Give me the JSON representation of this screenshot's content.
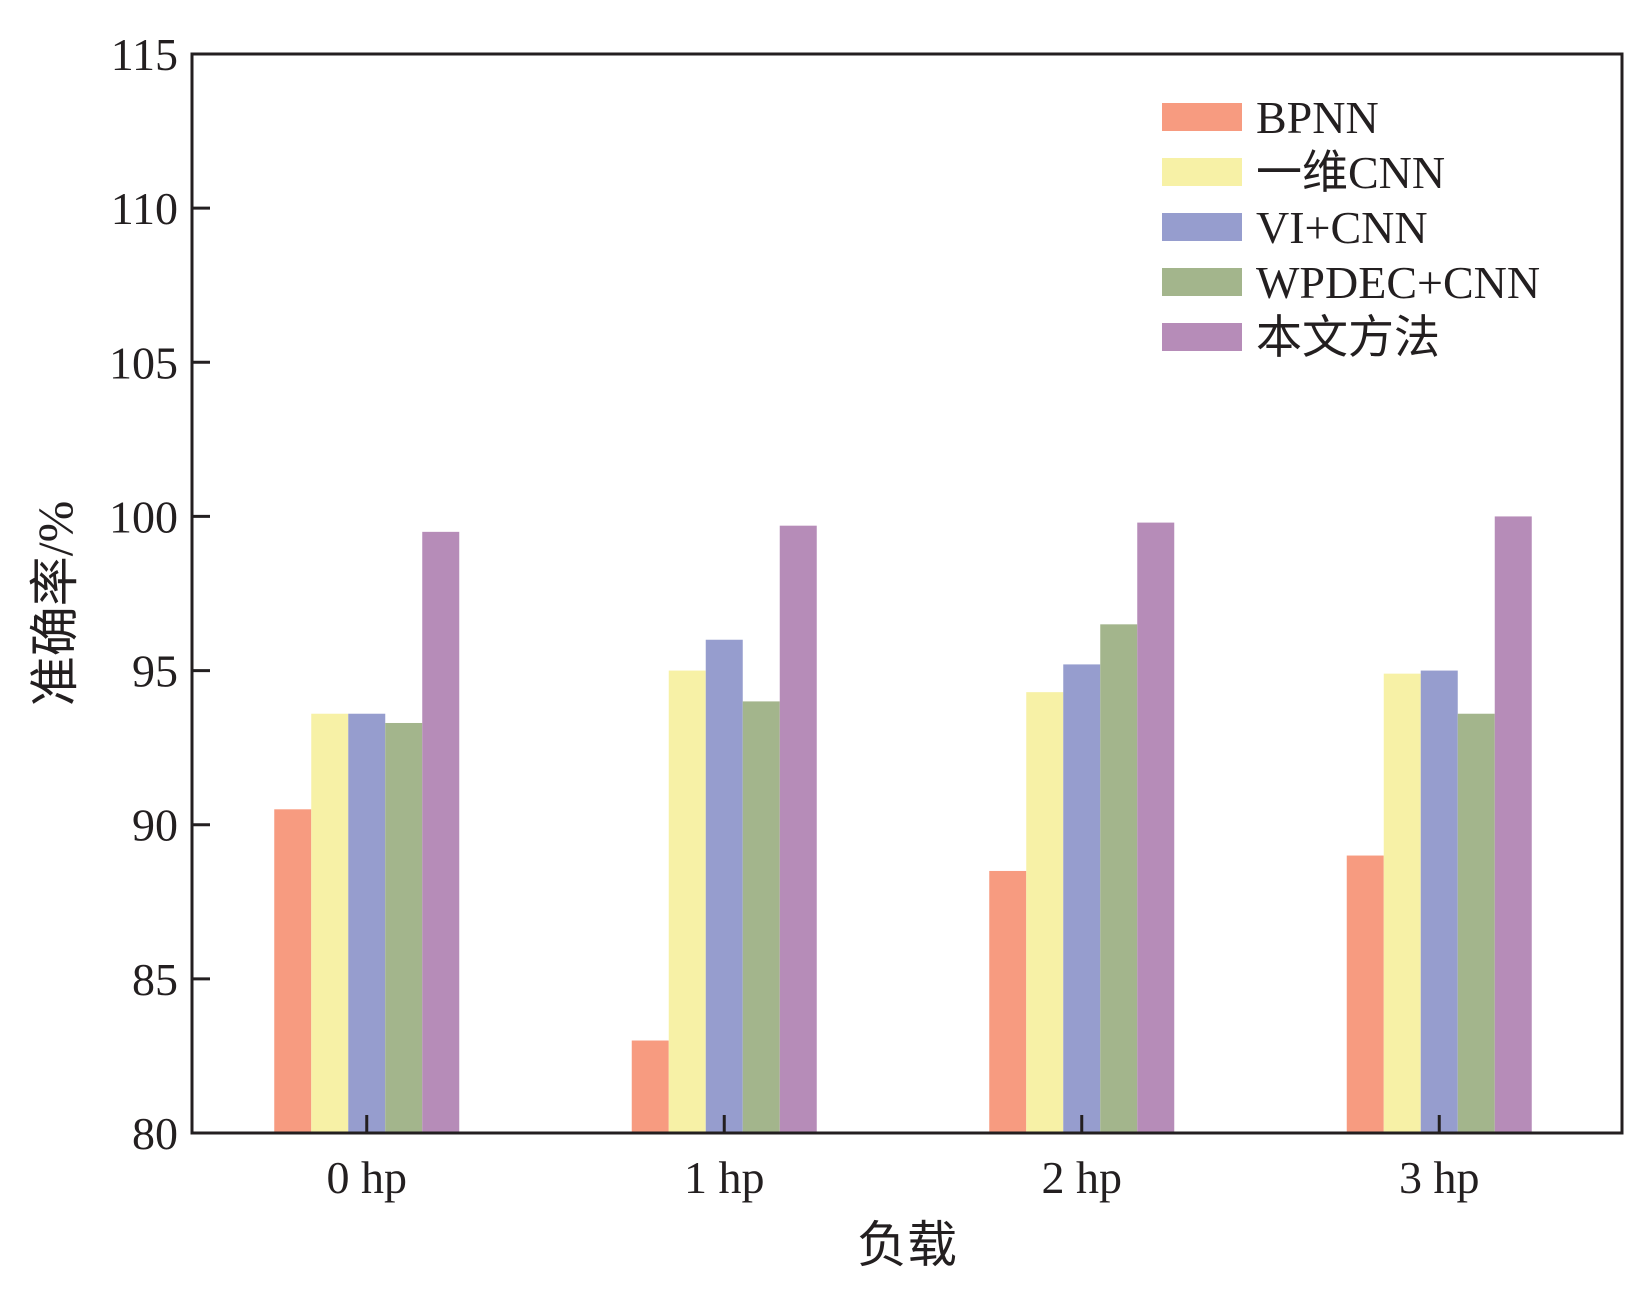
{
  "chart_data": {
    "type": "bar",
    "title": "",
    "xlabel": "负载",
    "ylabel": "准确率/%",
    "categories": [
      "0 hp",
      "1 hp",
      "2 hp",
      "3 hp"
    ],
    "ylim": [
      80,
      115
    ],
    "yticks": [
      80,
      85,
      90,
      95,
      100,
      105,
      110,
      115
    ],
    "ytick_labels": [
      "80",
      "85",
      "90",
      "95",
      "100",
      "105",
      "110",
      "115"
    ],
    "grid": false,
    "legend_position": "top-right",
    "series": [
      {
        "name": "BPNN",
        "color": "#f79b80",
        "values": [
          90.5,
          83.0,
          88.5,
          89.0
        ]
      },
      {
        "name": "一维CNN",
        "color": "#f7f1a6",
        "values": [
          93.6,
          95.0,
          94.3,
          94.9
        ]
      },
      {
        "name": "VI+CNN",
        "color": "#969dce",
        "values": [
          93.6,
          96.0,
          95.2,
          95.0
        ]
      },
      {
        "name": "WPDEC+CNN",
        "color": "#a3b58c",
        "values": [
          93.3,
          94.0,
          96.5,
          93.6
        ]
      },
      {
        "name": "本文方法",
        "color": "#b68cb8",
        "values": [
          99.5,
          99.7,
          99.8,
          100.0
        ]
      }
    ]
  }
}
